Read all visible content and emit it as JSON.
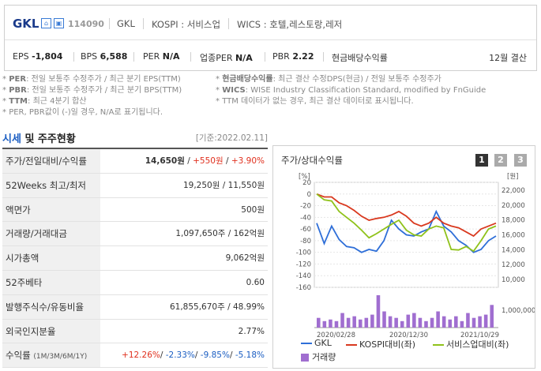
{
  "header": {
    "company_name": "GKL",
    "stock_code": "114090",
    "meta": [
      "GKL",
      "KOSPI : 서비스업",
      "WICS : 호텔,레스토랑,레저"
    ],
    "stats": [
      {
        "label": "EPS",
        "value": "-1,804"
      },
      {
        "label": "BPS",
        "value": "6,588"
      },
      {
        "label": "PER",
        "value": "N/A"
      },
      {
        "label": "업종PER",
        "value": "N/A"
      },
      {
        "label": "PBR",
        "value": "2.22"
      },
      {
        "label": "현금배당수익률",
        "value": ""
      }
    ],
    "fiscal": "12월 결산"
  },
  "notes": {
    "left": [
      {
        "key": "PER",
        "text": ": 전일 보통주 수정주가 / 최근 분기 EPS(TTM)"
      },
      {
        "key": "PBR",
        "text": ": 전일 보통주 수정주가 / 최근 분기 BPS(TTM)"
      },
      {
        "key": "TTM",
        "text": ": 최근 4분기 합산"
      },
      {
        "key": "",
        "text": "PER, PBR값이 (-)일 경우, N/A로 표기됩니다."
      }
    ],
    "right": [
      {
        "key": "현금배당수익률",
        "text": ": 최근 결산 수정DPS(현금) / 전일 보통주 수정주가"
      },
      {
        "key": "WICS",
        "text": ": WISE Industry Classification Standard, modified by FnGuide"
      },
      {
        "key": "",
        "text": "TTM 데이터가 없는 경우, 최근 결산 데이터로 표시됩니다."
      }
    ]
  },
  "market": {
    "title_blue": "시세",
    "title_rest": " 및 주주현황",
    "date": "[기준:2022.02.11]",
    "rows": [
      {
        "label": "주가/전일대비/수익률",
        "parts": [
          {
            "t": "14,650원",
            "c": "bold"
          },
          {
            "t": " / ",
            "c": ""
          },
          {
            "t": "+550원",
            "c": "red"
          },
          {
            "t": " / ",
            "c": ""
          },
          {
            "t": "+3.90%",
            "c": "red"
          }
        ]
      },
      {
        "label": "52Weeks 최고/최저",
        "parts": [
          {
            "t": "19,250원 / 11,550원",
            "c": ""
          }
        ]
      },
      {
        "label": "액면가",
        "parts": [
          {
            "t": "500원",
            "c": ""
          }
        ]
      },
      {
        "label": "거래량/거래대금",
        "parts": [
          {
            "t": "1,097,650주 / 162억원",
            "c": ""
          }
        ]
      },
      {
        "label": "시가총액",
        "parts": [
          {
            "t": "9,062억원",
            "c": ""
          }
        ]
      },
      {
        "label": "52주베타",
        "parts": [
          {
            "t": "0.60",
            "c": ""
          }
        ]
      },
      {
        "label": "발행주식수/유동비율",
        "parts": [
          {
            "t": "61,855,670주 / 48.99%",
            "c": ""
          }
        ]
      },
      {
        "label": "외국인지분율",
        "parts": [
          {
            "t": "2.77%",
            "c": ""
          }
        ]
      },
      {
        "label": "수익률",
        "sublabel": "(1M/3M/6M/1Y)",
        "parts": [
          {
            "t": "+12.26%",
            "c": "red"
          },
          {
            "t": "/ ",
            "c": ""
          },
          {
            "t": "-2.33%",
            "c": "blu"
          },
          {
            "t": "/ ",
            "c": ""
          },
          {
            "t": "-9.85%",
            "c": "blu"
          },
          {
            "t": "/ ",
            "c": ""
          },
          {
            "t": "-5.18%",
            "c": "blu"
          }
        ]
      }
    ]
  },
  "chart_panel": {
    "title": "주가/상대수익률",
    "tabs": [
      "1",
      "2",
      "3"
    ],
    "active_tab": "1"
  },
  "chart_data": {
    "type": "line",
    "left_unit": "[%]",
    "right_unit": "[원]",
    "left_ticks": [
      20,
      0,
      -20,
      -40,
      -60,
      -80,
      -100,
      -120,
      -140,
      -160
    ],
    "right_ticks": [
      "22,000",
      "20,000",
      "18,000",
      "16,000",
      "14,000",
      "12,000",
      "10,000"
    ],
    "volume_tick": "1,000,000",
    "x_labels": [
      "2020/02/28",
      "2020/12/30",
      "2021/10/29"
    ],
    "ylim": [
      -160,
      20
    ],
    "series": [
      {
        "name": "GKL",
        "color": "#2f6fd8",
        "values": [
          -50,
          -85,
          -55,
          -78,
          -90,
          -92,
          -100,
          -95,
          -98,
          -80,
          -45,
          -60,
          -70,
          -72,
          -65,
          -60,
          -30,
          -55,
          -65,
          -80,
          -88,
          -100,
          -95,
          -80,
          -72
        ]
      },
      {
        "name": "KOSPI대비(좌)",
        "color": "#d9391f",
        "values": [
          0,
          -5,
          -5,
          -15,
          -20,
          -28,
          -38,
          -45,
          -42,
          -40,
          -36,
          -30,
          -38,
          -50,
          -55,
          -50,
          -40,
          -50,
          -55,
          -58,
          -65,
          -72,
          -60,
          -55,
          -50
        ]
      },
      {
        "name": "서비스업대비(좌)",
        "color": "#8fc21a",
        "values": [
          0,
          -10,
          -12,
          -30,
          -40,
          -50,
          -62,
          -75,
          -68,
          -60,
          -52,
          -45,
          -62,
          -70,
          -72,
          -60,
          -55,
          -58,
          -95,
          -96,
          -90,
          -98,
          -80,
          -60,
          -55
        ]
      }
    ],
    "volume": {
      "name": "거래량",
      "color": "#a06ed0",
      "values": [
        0.3,
        0.2,
        0.25,
        0.2,
        0.45,
        0.3,
        0.35,
        0.25,
        0.3,
        0.4,
        1.0,
        0.5,
        0.35,
        0.3,
        0.2,
        0.4,
        0.45,
        0.3,
        0.2,
        0.3,
        0.5,
        0.35,
        0.25,
        0.35,
        0.2,
        0.45,
        0.3,
        0.35,
        0.4,
        0.7
      ]
    },
    "legend_position": "bottom"
  }
}
